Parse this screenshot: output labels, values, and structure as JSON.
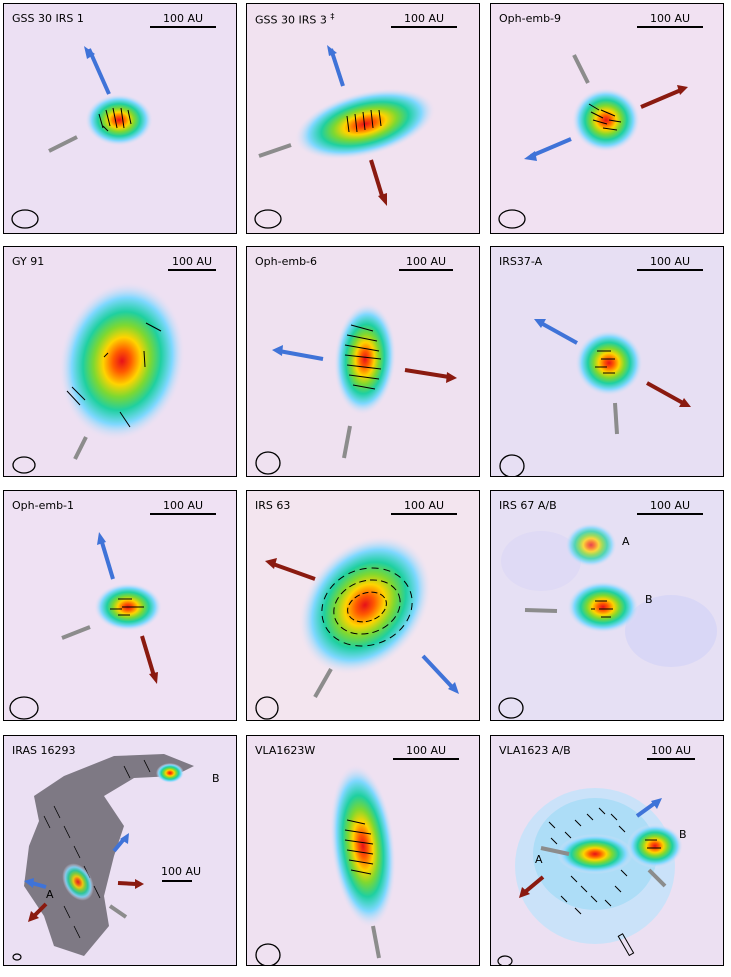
{
  "panels": [
    {
      "id": "p1",
      "label": "GSS 30 IRS 1",
      "scale": "100 AU"
    },
    {
      "id": "p2",
      "label": "GSS 30 IRS 3",
      "label_mark": "‡",
      "scale": "100 AU"
    },
    {
      "id": "p3",
      "label": "Oph-emb-9",
      "scale": "100 AU"
    },
    {
      "id": "p4",
      "label": "GY 91",
      "scale": "100 AU"
    },
    {
      "id": "p5",
      "label": "Oph-emb-6",
      "scale": "100 AU"
    },
    {
      "id": "p6",
      "label": "IRS37-A",
      "scale": "100 AU"
    },
    {
      "id": "p7",
      "label": "Oph-emb-1",
      "scale": "100 AU"
    },
    {
      "id": "p8",
      "label": "IRS 63",
      "scale": "100 AU"
    },
    {
      "id": "p9",
      "label": "IRS 67 A/B",
      "scale": "100 AU",
      "sources": [
        "A",
        "B"
      ]
    },
    {
      "id": "p10",
      "label": "IRAS 16293",
      "scale": "100 AU",
      "sources": [
        "A",
        "B"
      ]
    },
    {
      "id": "p11",
      "label": "VLA1623W",
      "scale": "100 AU"
    },
    {
      "id": "p12",
      "label": "VLA1623 A/B",
      "scale": "100 AU",
      "sources": [
        "A",
        "B"
      ]
    }
  ],
  "colors": {
    "background": "#ebdff3",
    "outflow_blue": "#3f73d8",
    "outflow_red": "#8a1a10",
    "axis_gray": "#8c8c8c",
    "vector": "#000000"
  }
}
